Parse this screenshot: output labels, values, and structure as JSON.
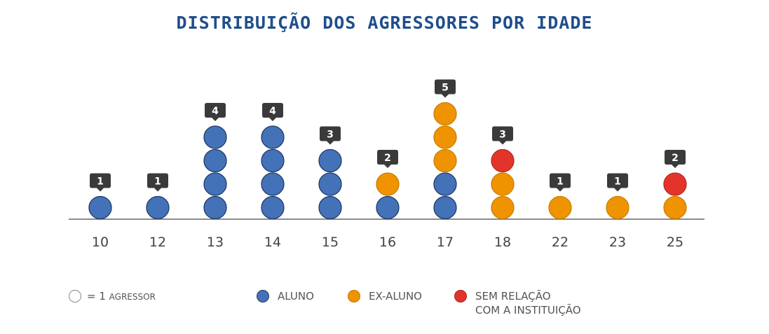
{
  "chart_data": {
    "type": "dot-stack",
    "title": "DISTRIBUIÇÃO DOS AGRESSORES POR IDADE",
    "categories": [
      "10",
      "12",
      "13",
      "14",
      "15",
      "16",
      "17",
      "18",
      "22",
      "23",
      "25"
    ],
    "totals": [
      1,
      1,
      4,
      4,
      3,
      2,
      5,
      3,
      1,
      1,
      2
    ],
    "series": [
      {
        "name": "ALUNO",
        "color": "#4472b8",
        "values": [
          1,
          1,
          4,
          4,
          3,
          1,
          2,
          0,
          0,
          0,
          0
        ]
      },
      {
        "name": "EX-ALUNO",
        "color": "#f09300",
        "values": [
          0,
          0,
          0,
          0,
          0,
          1,
          3,
          2,
          1,
          1,
          1
        ]
      },
      {
        "name": "SEM RELAÇÃO COM A INSTITUIÇÃO",
        "color": "#e3342b",
        "values": [
          0,
          0,
          0,
          0,
          0,
          0,
          0,
          1,
          0,
          0,
          1
        ]
      }
    ],
    "grid": false
  },
  "legend": {
    "unit_prefix": "= 1",
    "unit_label": "AGRESSOR",
    "aluno": "ALUNO",
    "ex_aluno": "EX-ALUNO",
    "sem_relacao_line1": "SEM RELAÇÃO",
    "sem_relacao_line2": "COM A INSTITUIÇÃO"
  }
}
